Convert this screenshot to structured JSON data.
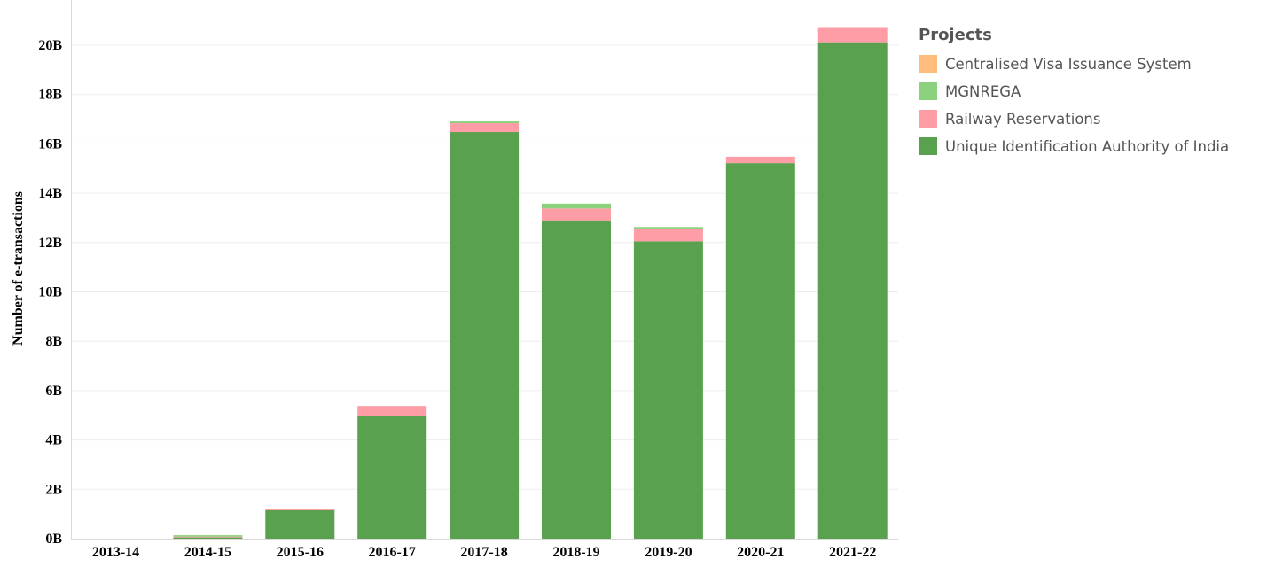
{
  "chart_data": {
    "type": "bar",
    "stacked": true,
    "categories": [
      "2013-14",
      "2014-15",
      "2015-16",
      "2016-17",
      "2017-18",
      "2018-19",
      "2019-20",
      "2020-21",
      "2021-22"
    ],
    "series": [
      {
        "name": "Unique Identification Authority of India",
        "color": "#59a14f",
        "values": [
          0,
          0.05,
          1.15,
          4.98,
          16.48,
          12.9,
          12.05,
          15.22,
          20.12
        ]
      },
      {
        "name": "Railway Reservations",
        "color": "#ff9da7",
        "values": [
          0,
          0.03,
          0.05,
          0.4,
          0.36,
          0.48,
          0.52,
          0.26,
          0.58
        ]
      },
      {
        "name": "MGNREGA",
        "color": "#8cd17d",
        "values": [
          0,
          0.06,
          0.02,
          0.0,
          0.07,
          0.2,
          0.06,
          0.0,
          0.0
        ]
      },
      {
        "name": "Centralised Visa Issuance System",
        "color": "#ffbe7d",
        "values": [
          0,
          0.0,
          0.0,
          0.0,
          0.0,
          0.0,
          0.0,
          0.0,
          0.0
        ]
      }
    ],
    "ylabel": "Number of e-transactions",
    "xlabel": "",
    "ylim": [
      0,
      21
    ],
    "yticks": [
      0,
      2,
      4,
      6,
      8,
      10,
      12,
      14,
      16,
      18,
      20
    ],
    "ytick_labels": [
      "0B",
      "2B",
      "4B",
      "6B",
      "8B",
      "10B",
      "12B",
      "14B",
      "16B",
      "18B",
      "20B"
    ],
    "grid": true,
    "legend": {
      "title": "Projects",
      "placement": "top-right",
      "entries": [
        "Centralised Visa Issuance System",
        "MGNREGA",
        "Railway Reservations",
        "Unique Identification Authority of India"
      ]
    }
  }
}
